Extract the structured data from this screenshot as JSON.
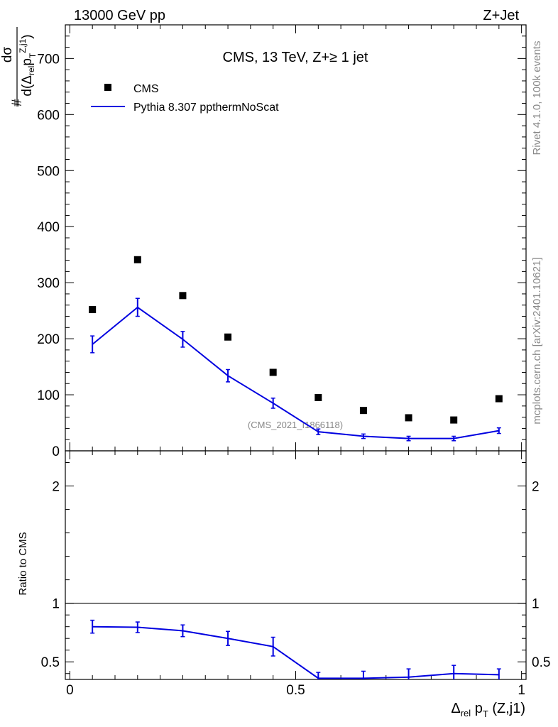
{
  "header": {
    "energy_label": "13000 GeV pp",
    "process_label": "Z+Jet"
  },
  "side_labels": {
    "rivet": "Rivet 4.1.0,  100k events",
    "mcplots": "mcplots.cern.ch [arXiv:2401.10621]"
  },
  "main_panel": {
    "title": "CMS, 13 TeV, Z+≥ 1 jet",
    "watermark": "(CMS_2021_I1866118)",
    "ylabel": "# dσ / d(Δrel pT Z,j1)",
    "legend": {
      "data_label": "CMS",
      "mc_label": "Pythia 8.307 ppthermNoScat"
    }
  },
  "ratio_panel": {
    "ylabel": "Ratio to CMS"
  },
  "x_axis": {
    "label": "Δrel pT (Z,j1)"
  },
  "colors": {
    "data": "#000000",
    "mc": "#0000e0",
    "axis": "#000000",
    "watermark": "#888888"
  },
  "chart_data": [
    {
      "type": "scatter",
      "panel": "main",
      "title": "CMS, 13 TeV, Z+≥ 1 jet",
      "xlabel": "Δrel pT (Z,j1)",
      "ylabel": "# dσ / d(Δrel pT Z,j1)",
      "xlim": [
        -0.01,
        1.01
      ],
      "ylim": [
        0,
        760
      ],
      "y_ticks": [
        0,
        100,
        200,
        300,
        400,
        500,
        600,
        700
      ],
      "x_ticks": [
        0,
        0.5,
        1
      ],
      "series": [
        {
          "name": "CMS",
          "style": "markers",
          "x": [
            0.05,
            0.15,
            0.25,
            0.35,
            0.45,
            0.55,
            0.65,
            0.75,
            0.85,
            0.95
          ],
          "y": [
            252,
            341,
            277,
            203,
            140,
            95,
            72,
            59,
            55,
            93
          ]
        },
        {
          "name": "Pythia 8.307 ppthermNoScat",
          "style": "line-with-errors",
          "x": [
            0.05,
            0.15,
            0.25,
            0.35,
            0.45,
            0.55,
            0.65,
            0.75,
            0.85,
            0.95
          ],
          "y": [
            190,
            256,
            199,
            134,
            85,
            34,
            26,
            22,
            22,
            36
          ],
          "err": [
            15,
            16,
            14,
            11,
            9,
            5,
            4,
            4,
            4,
            5
          ]
        }
      ]
    },
    {
      "type": "line",
      "panel": "ratio",
      "ylabel": "Ratio to CMS",
      "xlabel": "Δrel pT (Z,j1)",
      "xlim": [
        -0.01,
        1.01
      ],
      "ylim": [
        0.35,
        2.3
      ],
      "y_ticks": [
        0.5,
        1,
        2
      ],
      "reference_line": 1,
      "series": [
        {
          "name": "Pythia 8.307 ppthermNoScat / CMS",
          "x": [
            0.05,
            0.15,
            0.25,
            0.35,
            0.45,
            0.55,
            0.65,
            0.75,
            0.85,
            0.95
          ],
          "y": [
            0.8,
            0.795,
            0.765,
            0.7,
            0.63,
            0.36,
            0.36,
            0.37,
            0.4,
            0.39
          ],
          "err": [
            0.055,
            0.045,
            0.05,
            0.06,
            0.08,
            0.05,
            0.06,
            0.07,
            0.07,
            0.05
          ]
        }
      ]
    }
  ]
}
